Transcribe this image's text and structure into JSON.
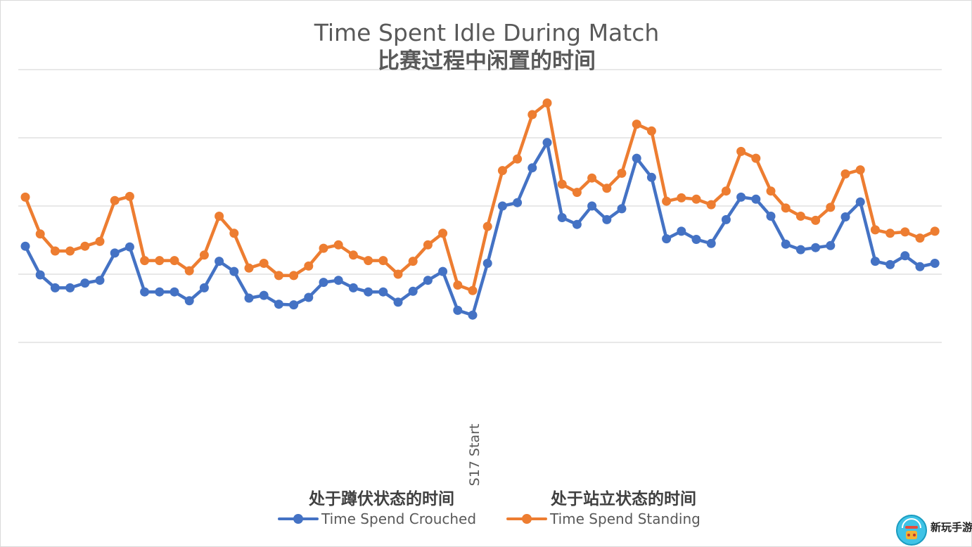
{
  "chart_data": {
    "type": "line",
    "title": "Time Spent Idle During Match",
    "subtitle": "比赛过程中闲置的时间",
    "annotation": {
      "label": "S17 Start",
      "index": 31
    },
    "grid": true,
    "legend_position": "bottom",
    "ylim": [
      0,
      5
    ],
    "series": [
      {
        "name": "Time Spend Crouched",
        "name_cn": "处于蹲伏状态的时间",
        "color": "#4472c4",
        "values": [
          2.41,
          1.99,
          1.8,
          1.8,
          1.87,
          1.91,
          2.31,
          2.4,
          1.74,
          1.74,
          1.74,
          1.61,
          1.8,
          2.19,
          2.04,
          1.65,
          1.69,
          1.56,
          1.55,
          1.66,
          1.88,
          1.91,
          1.8,
          1.74,
          1.74,
          1.59,
          1.75,
          1.91,
          2.04,
          1.47,
          1.4,
          2.16,
          3.0,
          3.05,
          3.56,
          3.93,
          2.83,
          2.73,
          3.0,
          2.8,
          2.96,
          3.7,
          3.42,
          2.52,
          2.63,
          2.51,
          2.45,
          2.8,
          3.13,
          3.1,
          2.85,
          2.44,
          2.36,
          2.39,
          2.42,
          2.84,
          3.06,
          2.19,
          2.14,
          2.27,
          2.11,
          2.16
        ]
      },
      {
        "name": "Time Spend Standing",
        "name_cn": "处于站立状态的时间",
        "color": "#ed7d31",
        "values": [
          3.13,
          2.59,
          2.34,
          2.34,
          2.41,
          2.48,
          3.08,
          3.14,
          2.2,
          2.2,
          2.2,
          2.05,
          2.28,
          2.85,
          2.6,
          2.09,
          2.16,
          1.98,
          1.98,
          2.12,
          2.38,
          2.43,
          2.28,
          2.2,
          2.2,
          2.0,
          2.19,
          2.43,
          2.6,
          1.84,
          1.76,
          2.7,
          3.52,
          3.69,
          4.34,
          4.51,
          3.32,
          3.2,
          3.41,
          3.26,
          3.48,
          4.2,
          4.1,
          3.07,
          3.12,
          3.1,
          3.02,
          3.22,
          3.8,
          3.7,
          3.22,
          2.97,
          2.85,
          2.79,
          2.98,
          3.47,
          3.53,
          2.65,
          2.6,
          2.62,
          2.53,
          2.63
        ]
      }
    ]
  },
  "watermark": {
    "text": "新玩手游"
  }
}
